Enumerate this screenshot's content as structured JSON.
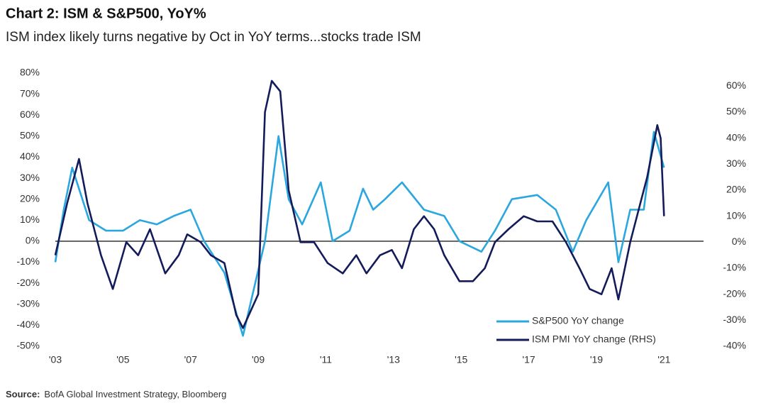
{
  "chart_data": {
    "type": "line",
    "title": "Chart 2: ISM & S&P500, YoY%",
    "subtitle": "ISM index likely turns negative by Oct in YoY terms...stocks trade ISM",
    "source_label": "Source:",
    "source": "BofA Global Investment Strategy, Bloomberg",
    "xlim": [
      2003,
      2022
    ],
    "xticks": [
      {
        "value": 2003,
        "label": "'03"
      },
      {
        "value": 2005,
        "label": "'05"
      },
      {
        "value": 2007,
        "label": "'07"
      },
      {
        "value": 2009,
        "label": "'09"
      },
      {
        "value": 2011,
        "label": "'11"
      },
      {
        "value": 2013,
        "label": "'13"
      },
      {
        "value": 2015,
        "label": "'15"
      },
      {
        "value": 2017,
        "label": "'17"
      },
      {
        "value": 2019,
        "label": "'19"
      },
      {
        "value": 2021,
        "label": "'21"
      }
    ],
    "ylim": [
      -50,
      80
    ],
    "yticks": [
      {
        "value": 80,
        "label": "80%"
      },
      {
        "value": 70,
        "label": "70%"
      },
      {
        "value": 60,
        "label": "60%"
      },
      {
        "value": 50,
        "label": "50%"
      },
      {
        "value": 40,
        "label": "40%"
      },
      {
        "value": 30,
        "label": "30%"
      },
      {
        "value": 20,
        "label": "20%"
      },
      {
        "value": 10,
        "label": "10%"
      },
      {
        "value": 0,
        "label": "0%"
      },
      {
        "value": -10,
        "label": "-10%"
      },
      {
        "value": -20,
        "label": "-20%"
      },
      {
        "value": -30,
        "label": "-30%"
      },
      {
        "value": -40,
        "label": "-40%"
      },
      {
        "value": -50,
        "label": "-50%"
      }
    ],
    "y2lim": [
      -40,
      65
    ],
    "y2ticks": [
      {
        "value": 60,
        "label": "60%"
      },
      {
        "value": 50,
        "label": "50%"
      },
      {
        "value": 40,
        "label": "40%"
      },
      {
        "value": 30,
        "label": "30%"
      },
      {
        "value": 20,
        "label": "20%"
      },
      {
        "value": 10,
        "label": "10%"
      },
      {
        "value": 0,
        "label": "0%"
      },
      {
        "value": -10,
        "label": "-10%"
      },
      {
        "value": -20,
        "label": "-20%"
      },
      {
        "value": -30,
        "label": "-30%"
      },
      {
        "value": -40,
        "label": "-40%"
      }
    ],
    "grid": false,
    "legend": "lower right",
    "series": [
      {
        "name": "S&P500 YoY change",
        "color": "#2aa7df",
        "x": [
          2003.0,
          2003.25,
          2003.5,
          2004.0,
          2004.5,
          2005.0,
          2005.5,
          2006.0,
          2006.5,
          2007.0,
          2007.4,
          2008.0,
          2008.55,
          2009.2,
          2009.6,
          2009.9,
          2010.3,
          2010.85,
          2011.2,
          2011.7,
          2012.1,
          2012.4,
          2012.75,
          2013.25,
          2013.9,
          2014.5,
          2014.95,
          2015.6,
          2016.0,
          2016.5,
          2017.25,
          2017.8,
          2018.3,
          2018.7,
          2019.35,
          2019.65,
          2020.0,
          2020.4,
          2020.7,
          2021.0
        ],
        "values": [
          -10,
          15,
          35,
          10,
          5,
          5,
          10,
          8,
          12,
          15,
          0,
          -15,
          -45,
          0,
          50,
          20,
          8,
          28,
          0,
          5,
          25,
          15,
          20,
          28,
          15,
          12,
          0,
          -5,
          5,
          20,
          22,
          15,
          -5,
          10,
          28,
          -10,
          15,
          15,
          52,
          35
        ]
      },
      {
        "name": "ISM PMI YoY change (RHS)",
        "color": "#141b5a",
        "axis": "y2",
        "x": [
          2003.0,
          2003.35,
          2003.7,
          2003.95,
          2004.35,
          2004.7,
          2005.1,
          2005.45,
          2005.8,
          2006.25,
          2006.65,
          2006.9,
          2007.3,
          2007.6,
          2008.0,
          2008.35,
          2008.55,
          2009.0,
          2009.2,
          2009.4,
          2009.65,
          2009.9,
          2010.25,
          2010.65,
          2011.05,
          2011.5,
          2011.9,
          2012.2,
          2012.6,
          2012.95,
          2013.25,
          2013.6,
          2013.9,
          2014.2,
          2014.5,
          2014.95,
          2015.35,
          2015.7,
          2016.0,
          2016.4,
          2016.85,
          2017.25,
          2017.7,
          2018.1,
          2018.5,
          2018.8,
          2019.15,
          2019.45,
          2019.65,
          2020.0,
          2020.3,
          2020.5,
          2020.8,
          2020.9,
          2021.0
        ],
        "values": [
          -5,
          15,
          32,
          15,
          -5,
          -18,
          0,
          -5,
          5,
          -12,
          -5,
          3,
          0,
          -5,
          -8,
          -28,
          -33,
          -20,
          50,
          62,
          58,
          20,
          0,
          0,
          -8,
          -12,
          -5,
          -12,
          -5,
          -3,
          -10,
          5,
          10,
          5,
          -5,
          -15,
          -15,
          -10,
          0,
          5,
          10,
          8,
          8,
          0,
          -10,
          -18,
          -20,
          -10,
          -22,
          0,
          15,
          25,
          45,
          40,
          10
        ]
      }
    ]
  }
}
